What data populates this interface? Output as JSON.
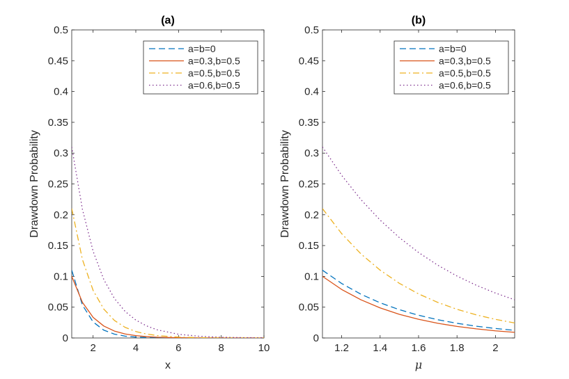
{
  "chart_data": [
    {
      "type": "line",
      "title": "(a)",
      "xlabel": "x",
      "ylabel": "Drawdown Probability",
      "xlim": [
        1,
        10
      ],
      "ylim": [
        0,
        0.5
      ],
      "xticks": [
        2,
        4,
        6,
        8,
        10
      ],
      "xtick_labels": [
        "2",
        "4",
        "6",
        "8",
        "10"
      ],
      "yticks": [
        0,
        0.05,
        0.1,
        0.15,
        0.2,
        0.25,
        0.3,
        0.35,
        0.4,
        0.45,
        0.5
      ],
      "ytick_labels": [
        "0",
        "0.05",
        "0.1",
        "0.15",
        "0.2",
        "0.25",
        "0.3",
        "0.35",
        "0.4",
        "0.45",
        "0.5"
      ],
      "legend_position": "top-right",
      "x": [
        1,
        1.5,
        2,
        2.5,
        3,
        3.5,
        4,
        4.5,
        5,
        6,
        7,
        8,
        9,
        10
      ],
      "series": [
        {
          "name": "a=b=0",
          "color": "#0072BD",
          "style": "dashed",
          "values": [
            0.11,
            0.0535,
            0.026,
            0.0127,
            0.0062,
            0.003,
            0.0015,
            0.0007,
            0.0003,
            0.0001,
            0,
            0,
            0,
            0
          ]
        },
        {
          "name": "a=0.3,b=0.5",
          "color": "#D95319",
          "style": "solid",
          "values": [
            0.1,
            0.0579,
            0.0335,
            0.0194,
            0.0112,
            0.0065,
            0.0038,
            0.0022,
            0.0013,
            0.0004,
            0.0001,
            0,
            0,
            0
          ]
        },
        {
          "name": "a=0.5,b=0.5",
          "color": "#EDB120",
          "style": "dashdot",
          "values": [
            0.21,
            0.1274,
            0.0773,
            0.0469,
            0.0284,
            0.0172,
            0.0105,
            0.0064,
            0.0039,
            0.0014,
            0.0005,
            0.0002,
            0.0001,
            0
          ]
        },
        {
          "name": "a=0.6,b=0.5",
          "color": "#7E2F8E",
          "style": "dotted",
          "values": [
            0.31,
            0.2089,
            0.1408,
            0.0949,
            0.064,
            0.0431,
            0.0291,
            0.0196,
            0.0132,
            0.006,
            0.0027,
            0.0012,
            0.0006,
            0.0003
          ]
        }
      ]
    },
    {
      "type": "line",
      "title": "(b)",
      "xlabel": "μ",
      "ylabel": "Drawdown Probability",
      "xlim": [
        1.1,
        2.1
      ],
      "ylim": [
        0,
        0.5
      ],
      "xticks": [
        1.2,
        1.4,
        1.6,
        1.8,
        2
      ],
      "xtick_labels": [
        "1.2",
        "1.4",
        "1.6",
        "1.8",
        "2"
      ],
      "yticks": [
        0,
        0.05,
        0.1,
        0.15,
        0.2,
        0.25,
        0.3,
        0.35,
        0.4,
        0.45,
        0.5
      ],
      "ytick_labels": [
        "0",
        "0.05",
        "0.1",
        "0.15",
        "0.2",
        "0.25",
        "0.3",
        "0.35",
        "0.4",
        "0.45",
        "0.5"
      ],
      "legend_position": "top-right",
      "x": [
        1.1,
        1.2,
        1.3,
        1.4,
        1.5,
        1.6,
        1.7,
        1.8,
        1.9,
        2.0,
        2.1
      ],
      "series": [
        {
          "name": "a=b=0",
          "color": "#0072BD",
          "style": "dashed",
          "values": [
            0.11,
            0.0884,
            0.071,
            0.0571,
            0.0459,
            0.0369,
            0.0296,
            0.0238,
            0.0191,
            0.0154,
            0.0124
          ]
        },
        {
          "name": "a=0.3,b=0.5",
          "color": "#D95319",
          "style": "solid",
          "values": [
            0.1,
            0.0787,
            0.062,
            0.0488,
            0.0384,
            0.0303,
            0.0238,
            0.0188,
            0.0148,
            0.0116,
            0.0092
          ]
        },
        {
          "name": "a=0.5,b=0.5",
          "color": "#EDB120",
          "style": "dashdot",
          "values": [
            0.21,
            0.1693,
            0.1365,
            0.1101,
            0.0887,
            0.0715,
            0.0577,
            0.0465,
            0.0375,
            0.0302,
            0.0244
          ]
        },
        {
          "name": "a=0.6,b=0.5",
          "color": "#7E2F8E",
          "style": "dotted",
          "values": [
            0.31,
            0.2639,
            0.2247,
            0.1913,
            0.1629,
            0.1387,
            0.1181,
            0.1005,
            0.0856,
            0.0729,
            0.062
          ]
        }
      ]
    }
  ]
}
